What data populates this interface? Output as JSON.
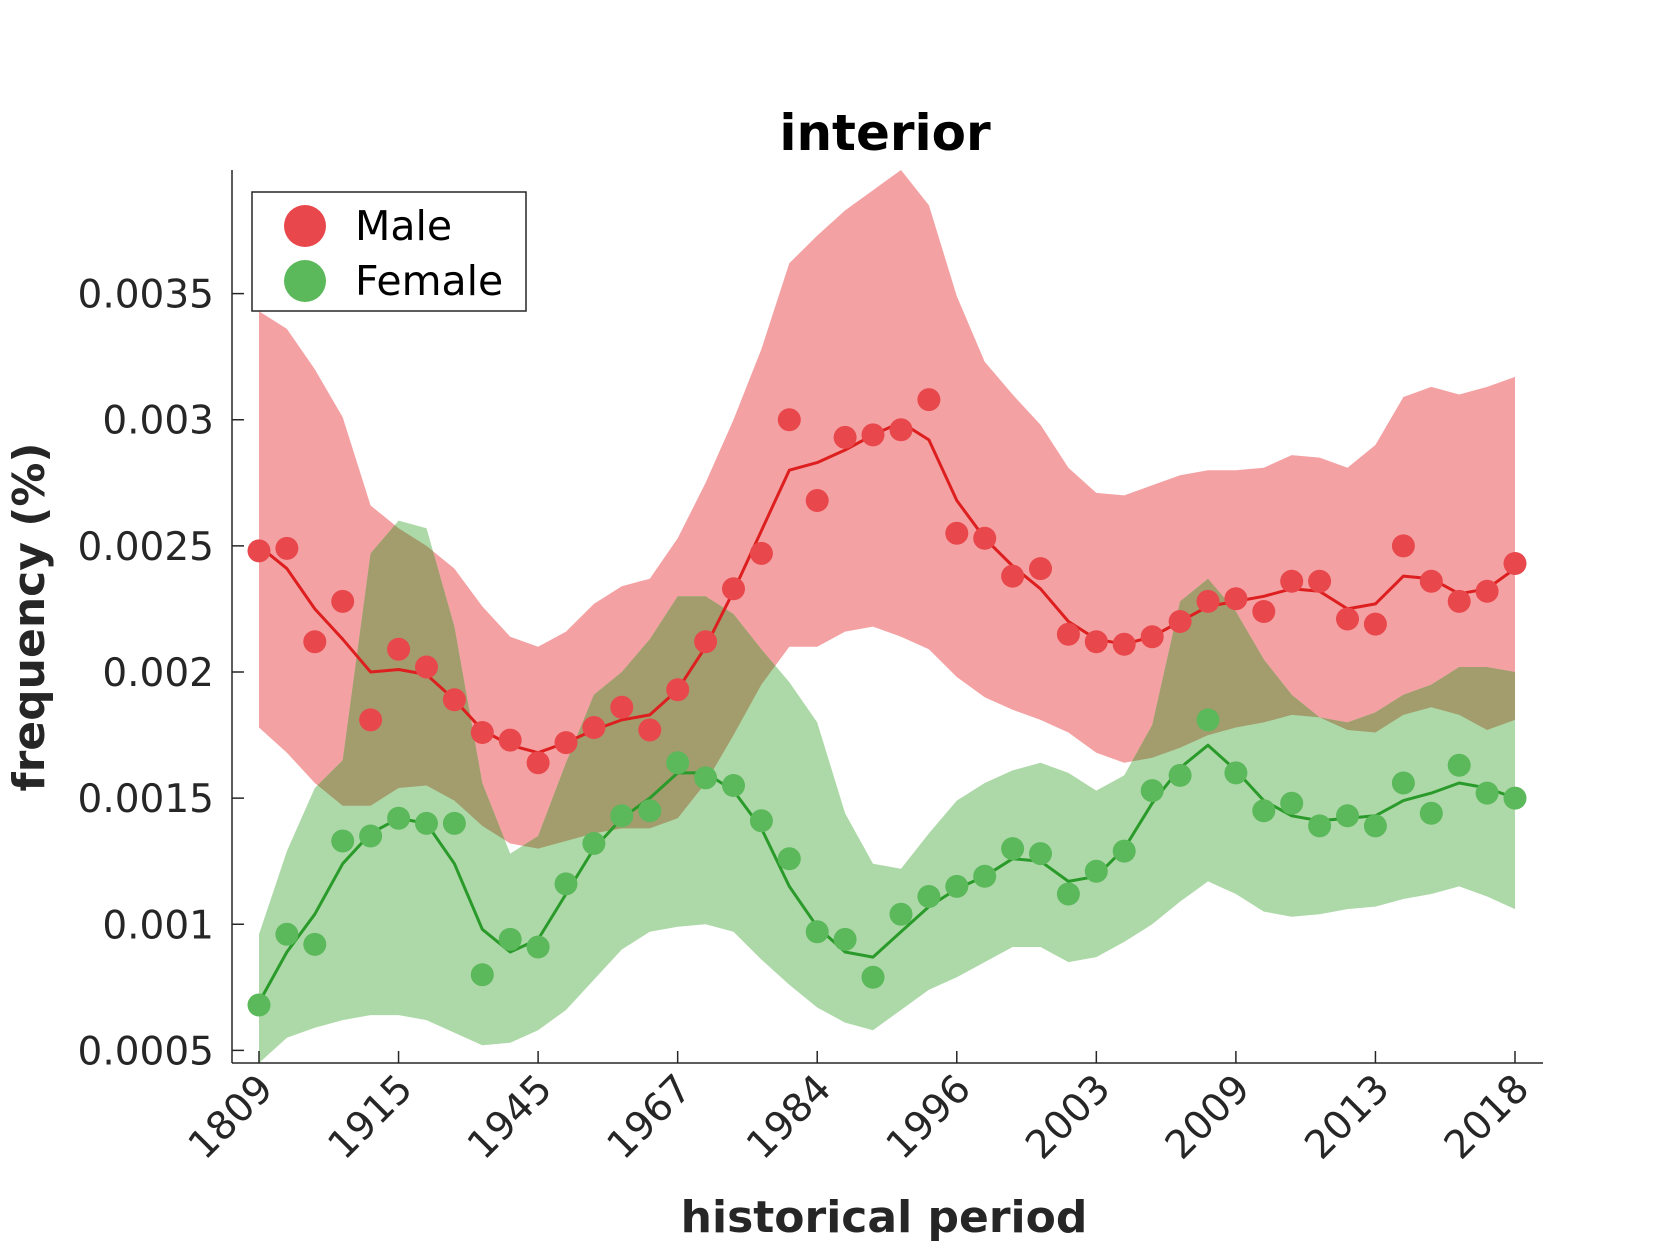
{
  "chart_data": {
    "type": "line",
    "title": "interior",
    "xlabel": "historical period",
    "ylabel": "frequency (%)",
    "x_tick_labels": [
      "1809",
      "1915",
      "1945",
      "1967",
      "1984",
      "1996",
      "2003",
      "2009",
      "2013",
      "2018"
    ],
    "y_ticks": [
      0.0005,
      0.001,
      0.0015,
      0.002,
      0.0025,
      0.003,
      0.0035
    ],
    "y_tick_labels": [
      "0.0005",
      "0.001",
      "0.0015",
      "0.002",
      "0.0025",
      "0.003",
      "0.0035"
    ],
    "ylim": [
      0.00045,
      0.00399
    ],
    "x_count": 46,
    "tick_every": 5,
    "grid": false,
    "legend_position": "top-left",
    "series": [
      {
        "name": "Male",
        "color": "#e8474b",
        "line_color": "#dd1f1f",
        "band_color": "#f4a1a3",
        "points": [
          0.00248,
          0.00249,
          0.00212,
          0.00228,
          0.00181,
          0.00209,
          0.00202,
          0.00189,
          0.00176,
          0.00173,
          0.00164,
          0.00172,
          0.00178,
          0.00186,
          0.00177,
          0.00193,
          0.00212,
          0.00233,
          0.00247,
          0.003,
          0.00268,
          0.00293,
          0.00294,
          0.00296,
          0.00308,
          0.00255,
          0.00253,
          0.00238,
          0.00241,
          0.00215,
          0.00212,
          0.00211,
          0.00214,
          0.0022,
          0.00228,
          0.00229,
          0.00224,
          0.00236,
          0.00236,
          0.00221,
          0.00219,
          0.0025,
          0.00236,
          0.00228,
          0.00232,
          0.00243
        ],
        "line": [
          0.0025,
          0.00241,
          0.00225,
          0.00213,
          0.002,
          0.00201,
          0.00199,
          0.00189,
          0.00177,
          0.00171,
          0.00168,
          0.00172,
          0.00177,
          0.00181,
          0.00183,
          0.00193,
          0.0021,
          0.00232,
          0.00256,
          0.0028,
          0.00283,
          0.00288,
          0.00294,
          0.00299,
          0.00292,
          0.00268,
          0.00253,
          0.00242,
          0.00233,
          0.0022,
          0.00213,
          0.00211,
          0.00214,
          0.0022,
          0.00226,
          0.00228,
          0.0023,
          0.00233,
          0.00232,
          0.00225,
          0.00227,
          0.00238,
          0.00237,
          0.00231,
          0.00233,
          0.00241
        ],
        "band_upper": [
          0.00343,
          0.00336,
          0.0032,
          0.00301,
          0.00266,
          0.00257,
          0.0025,
          0.00241,
          0.00226,
          0.00214,
          0.0021,
          0.00216,
          0.00227,
          0.00234,
          0.00237,
          0.00253,
          0.00275,
          0.003,
          0.00328,
          0.00362,
          0.00373,
          0.00383,
          0.00391,
          0.00399,
          0.00385,
          0.00349,
          0.00323,
          0.0031,
          0.00298,
          0.00281,
          0.00271,
          0.0027,
          0.00274,
          0.00278,
          0.0028,
          0.0028,
          0.00281,
          0.00286,
          0.00285,
          0.00281,
          0.0029,
          0.00309,
          0.00313,
          0.0031,
          0.00313,
          0.00317
        ],
        "band_lower": [
          0.00178,
          0.00168,
          0.00156,
          0.00147,
          0.00147,
          0.00154,
          0.00155,
          0.00149,
          0.00139,
          0.00132,
          0.0013,
          0.00133,
          0.00136,
          0.00138,
          0.00138,
          0.00142,
          0.00156,
          0.00175,
          0.00195,
          0.0021,
          0.0021,
          0.00216,
          0.00218,
          0.00214,
          0.00209,
          0.00198,
          0.0019,
          0.00185,
          0.00181,
          0.00176,
          0.00168,
          0.00164,
          0.00166,
          0.0017,
          0.00175,
          0.00178,
          0.0018,
          0.00183,
          0.00182,
          0.00177,
          0.00176,
          0.00183,
          0.00186,
          0.00183,
          0.00177,
          0.00181
        ]
      },
      {
        "name": "Female",
        "color": "#5bb85b",
        "line_color": "#2a9a2a",
        "band_color": "#add9a8",
        "points": [
          0.00068,
          0.00096,
          0.00092,
          0.00133,
          0.00135,
          0.00142,
          0.0014,
          0.0014,
          0.0008,
          0.00094,
          0.00091,
          0.00116,
          0.00132,
          0.00143,
          0.00145,
          0.00164,
          0.00158,
          0.00155,
          0.00141,
          0.00126,
          0.00097,
          0.00094,
          0.00079,
          0.00104,
          0.00111,
          0.00115,
          0.00119,
          0.0013,
          0.00128,
          0.00112,
          0.00121,
          0.00129,
          0.00153,
          0.00159,
          0.00181,
          0.0016,
          0.00145,
          0.00148,
          0.00139,
          0.00143,
          0.00139,
          0.00156,
          0.00144,
          0.00163,
          0.00152,
          0.0015
        ],
        "line": [
          0.00069,
          0.00089,
          0.00104,
          0.00124,
          0.00136,
          0.00142,
          0.0014,
          0.00124,
          0.00098,
          0.00089,
          0.00094,
          0.00112,
          0.0013,
          0.00142,
          0.0015,
          0.0016,
          0.0016,
          0.00153,
          0.00138,
          0.00115,
          0.00099,
          0.00089,
          0.00087,
          0.00097,
          0.00107,
          0.00114,
          0.00119,
          0.00126,
          0.00125,
          0.00117,
          0.00119,
          0.0013,
          0.00148,
          0.00162,
          0.00171,
          0.00161,
          0.00149,
          0.00143,
          0.00141,
          0.00142,
          0.00143,
          0.00149,
          0.00152,
          0.00156,
          0.00154,
          0.0015
        ],
        "band_upper": [
          0.00096,
          0.00129,
          0.00154,
          0.00165,
          0.00247,
          0.0026,
          0.00257,
          0.00218,
          0.00156,
          0.00128,
          0.00135,
          0.00164,
          0.00191,
          0.002,
          0.00213,
          0.0023,
          0.0023,
          0.00223,
          0.00209,
          0.00196,
          0.0018,
          0.00144,
          0.00124,
          0.00122,
          0.00136,
          0.00149,
          0.00156,
          0.00161,
          0.00164,
          0.0016,
          0.00153,
          0.00159,
          0.00179,
          0.00228,
          0.00237,
          0.00224,
          0.00205,
          0.00191,
          0.00182,
          0.0018,
          0.00184,
          0.00191,
          0.00195,
          0.00202,
          0.00202,
          0.002
        ],
        "band_lower": [
          0.00045,
          0.00055,
          0.00059,
          0.00062,
          0.00064,
          0.00064,
          0.00062,
          0.00057,
          0.00052,
          0.00053,
          0.00058,
          0.00066,
          0.00078,
          0.0009,
          0.00097,
          0.00099,
          0.001,
          0.00097,
          0.00086,
          0.00076,
          0.00067,
          0.00061,
          0.00058,
          0.00066,
          0.00074,
          0.00079,
          0.00085,
          0.00091,
          0.00091,
          0.00085,
          0.00087,
          0.00093,
          0.001,
          0.00109,
          0.00117,
          0.00112,
          0.00105,
          0.00103,
          0.00104,
          0.00106,
          0.00107,
          0.0011,
          0.00112,
          0.00115,
          0.00111,
          0.00106
        ]
      }
    ],
    "overlap_color": "#a39d6e"
  }
}
